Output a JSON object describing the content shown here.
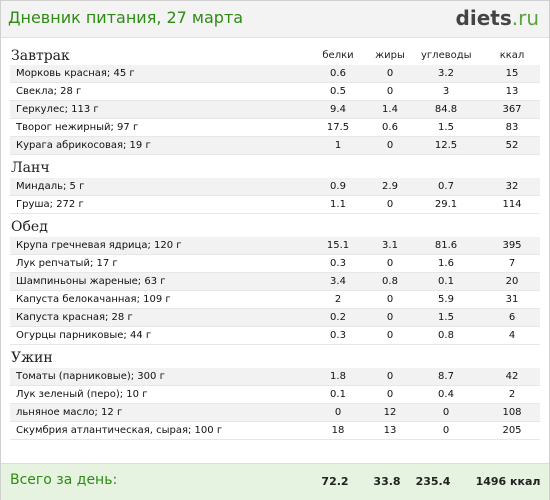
{
  "header": {
    "title": "Дневник питания, 27 марта",
    "logo_main": "diets",
    "logo_tld": ".ru"
  },
  "columns": {
    "protein": "белки",
    "fat": "жиры",
    "carbs": "углеводы",
    "kcal": "ккал"
  },
  "meals": [
    {
      "title": "Завтрак",
      "items": [
        {
          "name": "Морковь красная; 45 г",
          "protein": "0.6",
          "fat": "0",
          "carbs": "3.2",
          "kcal": "15"
        },
        {
          "name": "Свекла; 28 г",
          "protein": "0.5",
          "fat": "0",
          "carbs": "3",
          "kcal": "13"
        },
        {
          "name": "Геркулес; 113 г",
          "protein": "9.4",
          "fat": "1.4",
          "carbs": "84.8",
          "kcal": "367"
        },
        {
          "name": "Творог нежирный; 97 г",
          "protein": "17.5",
          "fat": "0.6",
          "carbs": "1.5",
          "kcal": "83"
        },
        {
          "name": "Курага абрикосовая; 19 г",
          "protein": "1",
          "fat": "0",
          "carbs": "12.5",
          "kcal": "52"
        }
      ]
    },
    {
      "title": "Ланч",
      "items": [
        {
          "name": "Миндаль; 5 г",
          "protein": "0.9",
          "fat": "2.9",
          "carbs": "0.7",
          "kcal": "32"
        },
        {
          "name": "Груша; 272 г",
          "protein": "1.1",
          "fat": "0",
          "carbs": "29.1",
          "kcal": "114"
        }
      ]
    },
    {
      "title": "Обед",
      "items": [
        {
          "name": "Крупа гречневая ядрица; 120 г",
          "protein": "15.1",
          "fat": "3.1",
          "carbs": "81.6",
          "kcal": "395"
        },
        {
          "name": "Лук репчатый; 17 г",
          "protein": "0.3",
          "fat": "0",
          "carbs": "1.6",
          "kcal": "7"
        },
        {
          "name": "Шампиньоны жареные; 63 г",
          "protein": "3.4",
          "fat": "0.8",
          "carbs": "0.1",
          "kcal": "20"
        },
        {
          "name": "Капуста белокачанная; 109 г",
          "protein": "2",
          "fat": "0",
          "carbs": "5.9",
          "kcal": "31"
        },
        {
          "name": "Капуста красная; 28 г",
          "protein": "0.2",
          "fat": "0",
          "carbs": "1.5",
          "kcal": "6"
        },
        {
          "name": "Огурцы парниковые; 44 г",
          "protein": "0.3",
          "fat": "0",
          "carbs": "0.8",
          "kcal": "4"
        }
      ]
    },
    {
      "title": "Ужин",
      "items": [
        {
          "name": "Томаты (парниковые); 300 г",
          "protein": "1.8",
          "fat": "0",
          "carbs": "8.7",
          "kcal": "42"
        },
        {
          "name": "Лук зеленый (перо); 10 г",
          "protein": "0.1",
          "fat": "0",
          "carbs": "0.4",
          "kcal": "2"
        },
        {
          "name": "льняное масло; 12 г",
          "protein": "0",
          "fat": "12",
          "carbs": "0",
          "kcal": "108"
        },
        {
          "name": "Скумбрия атлантическая, сырая; 100 г",
          "protein": "18",
          "fat": "13",
          "carbs": "0",
          "kcal": "205"
        }
      ]
    }
  ],
  "totals": {
    "label": "Всего за день:",
    "protein": "72.2",
    "fat": "33.8",
    "carbs": "235.4",
    "kcal": "1496 ккал"
  },
  "colors": {
    "title_green": "#2e8b14",
    "footer_bg": "#e6f3e1",
    "row_alt": "#f2f2f2"
  }
}
